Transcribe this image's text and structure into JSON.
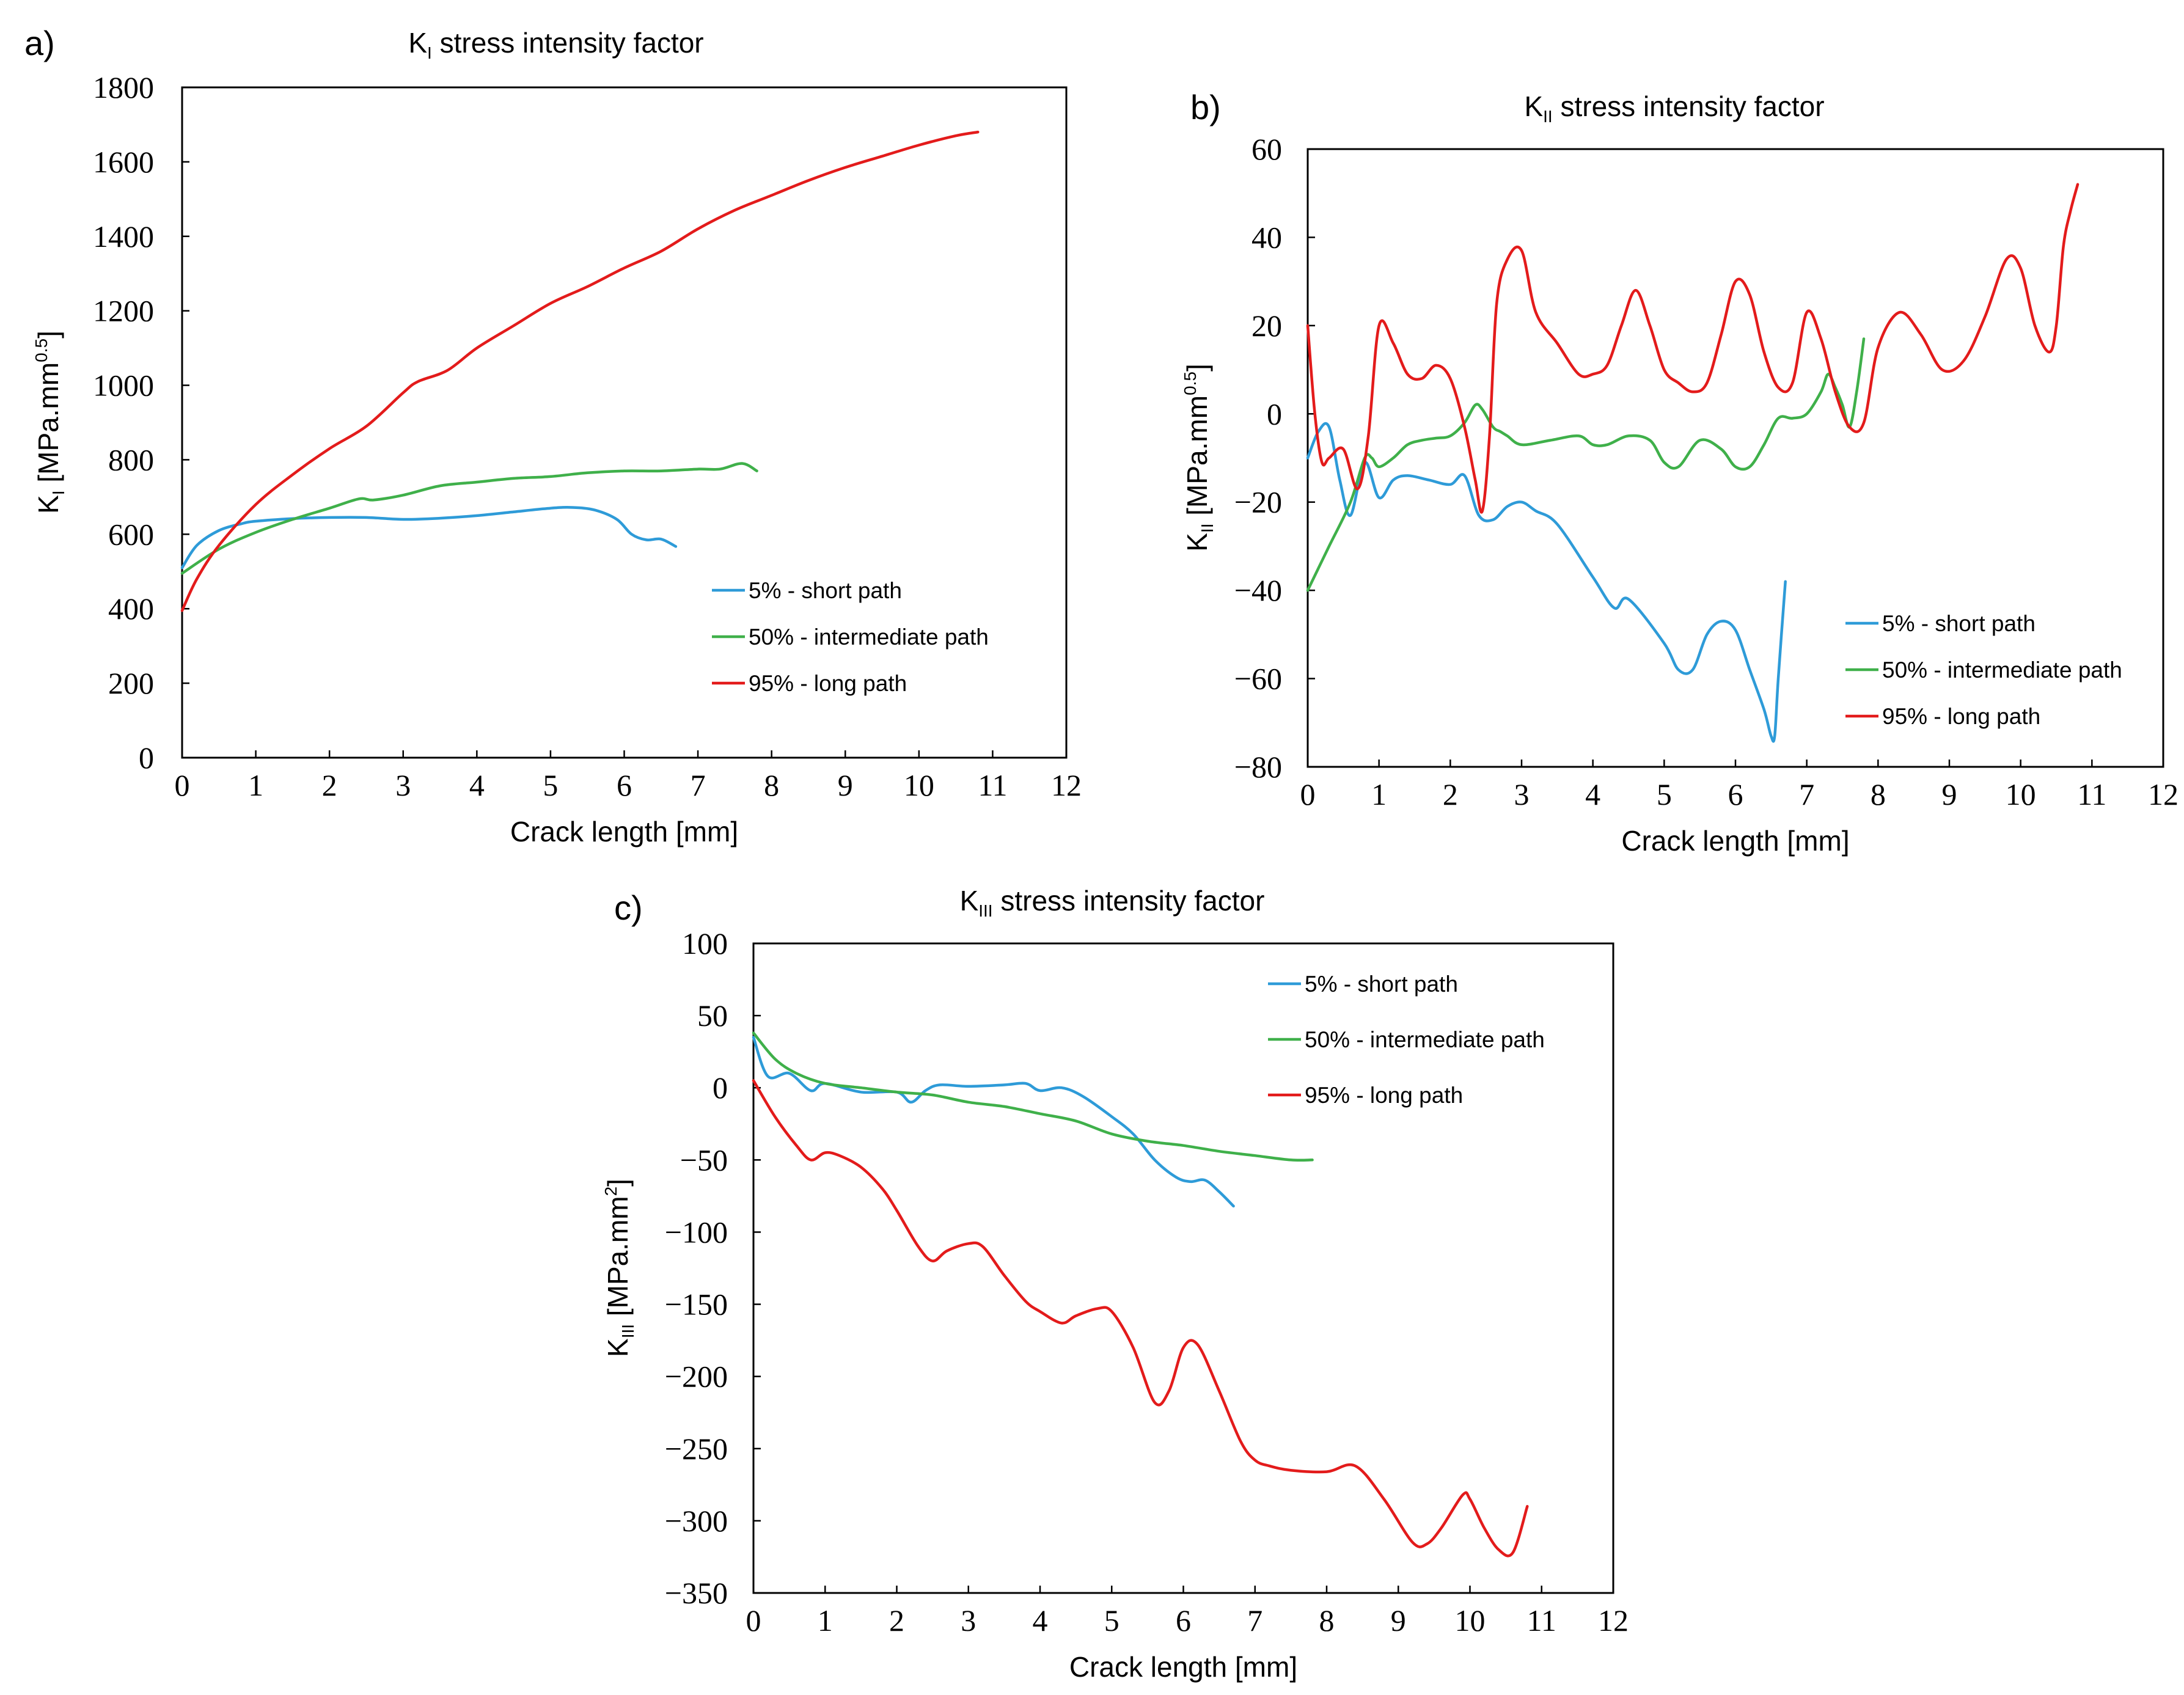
{
  "colors": {
    "short": "#2e9bd8",
    "intermediate": "#3fb04a",
    "long": "#e31b1b",
    "axis": "#000000"
  },
  "chart_data": [
    {
      "id": "a",
      "panel_label": "a)",
      "type": "line",
      "title": {
        "main": "K",
        "sub": "I",
        "rest": " stress intensity factor"
      },
      "xlabel": "Crack length [mm]",
      "ylabel": {
        "main": "K",
        "sub": "I",
        "rest": " [MPa.mm",
        "sup": "0.5",
        "end": "]"
      },
      "xlim": [
        0,
        12
      ],
      "ylim": [
        0,
        1800
      ],
      "xticks": [
        "0",
        "1",
        "2",
        "3",
        "4",
        "5",
        "6",
        "7",
        "8",
        "9",
        "10",
        "11",
        "12"
      ],
      "yticks": [
        "0",
        "200",
        "400",
        "600",
        "800",
        "1000",
        "1200",
        "1400",
        "1600",
        "1800"
      ],
      "legend_position": "lower-right",
      "series": [
        {
          "name": "5% - short path",
          "color_key": "short",
          "x": [
            0,
            0.2,
            0.5,
            0.8,
            1.0,
            1.5,
            2.0,
            2.5,
            3.0,
            3.5,
            4.0,
            4.5,
            5.0,
            5.3,
            5.6,
            5.9,
            6.1,
            6.3,
            6.5,
            6.7
          ],
          "y": [
            510,
            570,
            610,
            628,
            635,
            642,
            645,
            645,
            640,
            643,
            650,
            660,
            670,
            672,
            665,
            640,
            600,
            585,
            587,
            567
          ]
        },
        {
          "name": "50% - intermediate path",
          "color_key": "intermediate",
          "x": [
            0,
            0.5,
            1.0,
            1.5,
            2.0,
            2.4,
            2.6,
            3.0,
            3.5,
            4.0,
            4.5,
            5.0,
            5.5,
            6.0,
            6.5,
            7.0,
            7.3,
            7.6,
            7.8
          ],
          "y": [
            495,
            560,
            605,
            640,
            670,
            695,
            692,
            705,
            730,
            740,
            750,
            755,
            765,
            770,
            770,
            775,
            775,
            790,
            770
          ]
        },
        {
          "name": "95% - long path",
          "color_key": "long",
          "x": [
            0,
            0.2,
            0.5,
            1.0,
            1.5,
            2.0,
            2.5,
            3.0,
            3.2,
            3.6,
            4.0,
            4.5,
            5.0,
            5.5,
            6.0,
            6.5,
            7.0,
            7.5,
            8.0,
            8.5,
            9.0,
            9.5,
            10.0,
            10.5,
            10.8
          ],
          "y": [
            395,
            480,
            570,
            680,
            760,
            830,
            890,
            980,
            1010,
            1040,
            1100,
            1160,
            1220,
            1265,
            1315,
            1360,
            1420,
            1470,
            1510,
            1550,
            1585,
            1615,
            1645,
            1670,
            1680
          ]
        }
      ]
    },
    {
      "id": "b",
      "panel_label": "b)",
      "type": "line",
      "title": {
        "main": "K",
        "sub": "II",
        "rest": " stress intensity factor"
      },
      "xlabel": "Crack length [mm]",
      "ylabel": {
        "main": "K",
        "sub": "II",
        "rest": " [MPa.mm",
        "sup": "0.5",
        "end": "]"
      },
      "xlim": [
        0,
        12
      ],
      "ylim": [
        -80,
        60
      ],
      "xticks": [
        "0",
        "1",
        "2",
        "3",
        "4",
        "5",
        "6",
        "7",
        "8",
        "9",
        "10",
        "11",
        "12"
      ],
      "yticks": [
        "−80",
        "−60",
        "−40",
        "−20",
        "0",
        "20",
        "40",
        "60"
      ],
      "legend_position": "lower-right",
      "series": [
        {
          "name": "5% - short path",
          "color_key": "short",
          "x": [
            0,
            0.15,
            0.3,
            0.45,
            0.6,
            0.8,
            1.0,
            1.2,
            1.4,
            1.7,
            2.0,
            2.2,
            2.4,
            2.6,
            2.8,
            3.0,
            3.2,
            3.5,
            4.0,
            4.3,
            4.5,
            5.0,
            5.2,
            5.4,
            5.6,
            5.8,
            6.0,
            6.2,
            6.4,
            6.5,
            6.55,
            6.6,
            6.7
          ],
          "y": [
            -10,
            -4,
            -3,
            -15,
            -23,
            -11,
            -19,
            -15,
            -14,
            -15,
            -16,
            -14,
            -23,
            -24,
            -21,
            -20,
            -22,
            -25,
            -37,
            -44,
            -42,
            -52,
            -58,
            -58,
            -50,
            -47,
            -49,
            -58,
            -67,
            -73,
            -73,
            -60,
            -38
          ]
        },
        {
          "name": "50% - intermediate path",
          "color_key": "intermediate",
          "x": [
            0,
            0.3,
            0.6,
            0.8,
            0.9,
            1.0,
            1.2,
            1.4,
            1.6,
            1.8,
            2.0,
            2.2,
            2.35,
            2.45,
            2.6,
            2.7,
            2.8,
            3.0,
            3.4,
            3.8,
            4.0,
            4.2,
            4.5,
            4.8,
            5.0,
            5.2,
            5.5,
            5.8,
            6.0,
            6.2,
            6.4,
            6.6,
            6.8,
            7.0,
            7.2,
            7.3,
            7.4,
            7.5,
            7.6,
            7.7,
            7.8
          ],
          "y": [
            -40,
            -30,
            -20,
            -10,
            -10,
            -12,
            -10,
            -7,
            -6,
            -5.5,
            -5,
            -2,
            2,
            1,
            -3,
            -4,
            -5,
            -7,
            -6,
            -5,
            -7,
            -7,
            -5,
            -6,
            -11,
            -12,
            -6,
            -8,
            -12,
            -12,
            -7,
            -1,
            -1,
            0,
            5,
            9,
            6,
            2,
            -3,
            5,
            17
          ]
        },
        {
          "name": "95% - long path",
          "color_key": "long",
          "x": [
            0,
            0.1,
            0.2,
            0.3,
            0.5,
            0.7,
            0.85,
            1.0,
            1.2,
            1.4,
            1.6,
            1.8,
            2.0,
            2.2,
            2.35,
            2.45,
            2.55,
            2.65,
            2.8,
            3.0,
            3.2,
            3.5,
            3.8,
            4.0,
            4.2,
            4.4,
            4.6,
            4.8,
            5.0,
            5.2,
            5.4,
            5.6,
            5.8,
            6.0,
            6.2,
            6.4,
            6.6,
            6.8,
            7.0,
            7.2,
            7.4,
            7.6,
            7.8,
            8.0,
            8.3,
            8.6,
            8.9,
            9.2,
            9.5,
            9.8,
            10.0,
            10.2,
            10.4,
            10.5,
            10.6,
            10.7,
            10.8
          ],
          "y": [
            20,
            0,
            -11,
            -10,
            -8,
            -17,
            -5,
            20,
            16,
            9,
            8,
            11,
            8,
            -3,
            -15,
            -22,
            -5,
            25,
            35,
            37,
            23,
            16,
            9,
            9,
            11,
            20,
            28,
            20,
            10,
            7,
            5,
            7,
            18,
            30,
            27,
            14,
            6,
            7,
            23,
            17,
            5,
            -3,
            -2,
            15,
            23,
            18,
            10,
            12,
            22,
            35,
            33,
            20,
            14,
            20,
            38,
            46,
            52
          ]
        }
      ]
    },
    {
      "id": "c",
      "panel_label": "c)",
      "type": "line",
      "title": {
        "main": "K",
        "sub": "III",
        "rest": " stress intensity factor"
      },
      "xlabel": "Crack length [mm]",
      "ylabel": {
        "main": "K",
        "sub": "III",
        "rest": " [MPa.mm",
        "sup": "2",
        "end": "]"
      },
      "xlim": [
        0,
        12
      ],
      "ylim": [
        -350,
        100
      ],
      "xticks": [
        "0",
        "1",
        "2",
        "3",
        "4",
        "5",
        "6",
        "7",
        "8",
        "9",
        "10",
        "11",
        "12"
      ],
      "yticks": [
        "−350",
        "−300",
        "−250",
        "−200",
        "−150",
        "−100",
        "−50",
        "0",
        "50",
        "100"
      ],
      "legend_position": "top-right",
      "series": [
        {
          "name": "5% - short path",
          "color_key": "short",
          "x": [
            0,
            0.2,
            0.5,
            0.8,
            1.0,
            1.5,
            2.0,
            2.2,
            2.4,
            2.6,
            3.0,
            3.5,
            3.8,
            4.0,
            4.3,
            4.6,
            5.0,
            5.3,
            5.6,
            5.9,
            6.1,
            6.3,
            6.5,
            6.7
          ],
          "y": [
            35,
            8,
            10,
            -2,
            3,
            -3,
            -3,
            -10,
            -2,
            2,
            1,
            2,
            3,
            -2,
            0,
            -6,
            -20,
            -32,
            -50,
            -62,
            -65,
            -64,
            -72,
            -82
          ]
        },
        {
          "name": "50% - intermediate path",
          "color_key": "intermediate",
          "x": [
            0,
            0.3,
            0.6,
            1.0,
            1.5,
            2.0,
            2.5,
            3.0,
            3.5,
            4.0,
            4.5,
            5.0,
            5.5,
            6.0,
            6.5,
            7.0,
            7.5,
            7.8
          ],
          "y": [
            38,
            20,
            10,
            3,
            0,
            -3,
            -5,
            -10,
            -13,
            -18,
            -23,
            -32,
            -37,
            -40,
            -44,
            -47,
            -50,
            -50
          ]
        },
        {
          "name": "95% - long path",
          "color_key": "long",
          "x": [
            0,
            0.3,
            0.6,
            0.8,
            1.0,
            1.2,
            1.5,
            1.8,
            2.0,
            2.3,
            2.5,
            2.7,
            3.0,
            3.2,
            3.5,
            3.8,
            4.0,
            4.3,
            4.5,
            4.8,
            5.0,
            5.3,
            5.6,
            5.8,
            6.0,
            6.2,
            6.5,
            6.8,
            7.0,
            7.2,
            7.5,
            8.0,
            8.4,
            8.8,
            9.2,
            9.4,
            9.6,
            9.9,
            10.0,
            10.2,
            10.4,
            10.6,
            10.8
          ],
          "y": [
            5,
            -20,
            -40,
            -50,
            -45,
            -47,
            -55,
            -70,
            -85,
            -110,
            -120,
            -113,
            -108,
            -110,
            -130,
            -148,
            -155,
            -163,
            -158,
            -153,
            -155,
            -180,
            -218,
            -210,
            -180,
            -178,
            -210,
            -245,
            -258,
            -262,
            -265,
            -266,
            -262,
            -285,
            -315,
            -316,
            -305,
            -282,
            -285,
            -305,
            -320,
            -322,
            -290
          ]
        }
      ]
    }
  ]
}
